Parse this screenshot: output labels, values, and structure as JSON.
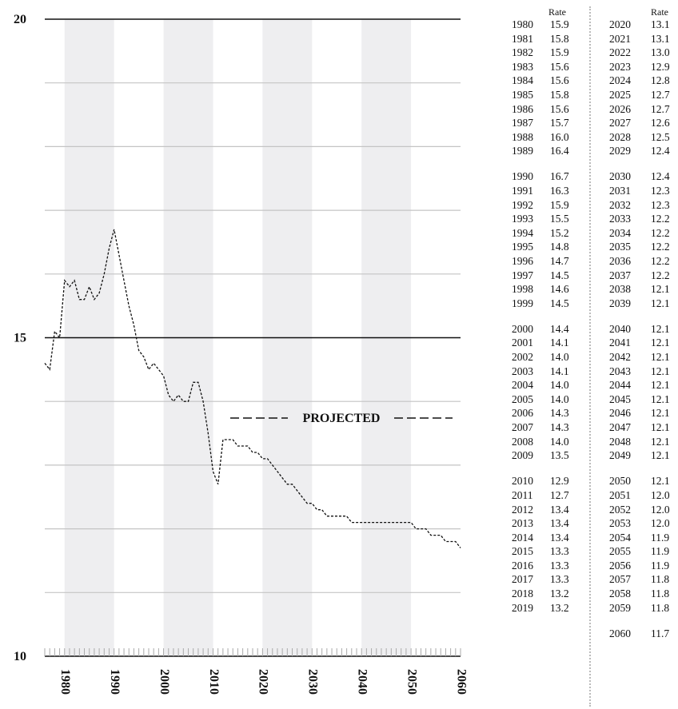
{
  "chart_data": {
    "type": "line",
    "ylim": [
      10,
      20
    ],
    "xlim": [
      1976,
      2060
    ],
    "y_major_ticks": [
      10,
      15,
      20
    ],
    "x_ticks": [
      1980,
      1990,
      2000,
      2010,
      2020,
      2030,
      2040,
      2050,
      2060
    ],
    "x_tick_labels": [
      "1980",
      "1990",
      "2000",
      "2010",
      "2020",
      "2030",
      "2040",
      "2050",
      "2060"
    ],
    "y_tick_labels": [
      "10",
      "15",
      "20"
    ],
    "annotation": "PROJECTED",
    "grid": true,
    "line_style": "dashed",
    "series": [
      {
        "x": [
          1976,
          1977,
          1978,
          1979,
          1980,
          1981,
          1982,
          1983,
          1984,
          1985,
          1986,
          1987,
          1988,
          1989,
          1990,
          1991,
          1992,
          1993,
          1994,
          1995,
          1996,
          1997,
          1998,
          1999,
          2000,
          2001,
          2002,
          2003,
          2004,
          2005,
          2006,
          2007,
          2008,
          2009,
          2010,
          2011,
          2012,
          2013,
          2014,
          2015,
          2016,
          2017,
          2018,
          2019,
          2020,
          2021,
          2022,
          2023,
          2024,
          2025,
          2026,
          2027,
          2028,
          2029,
          2030,
          2031,
          2032,
          2033,
          2034,
          2035,
          2036,
          2037,
          2038,
          2039,
          2040,
          2041,
          2042,
          2043,
          2044,
          2045,
          2046,
          2047,
          2048,
          2049,
          2050,
          2051,
          2052,
          2053,
          2054,
          2055,
          2056,
          2057,
          2058,
          2059,
          2060
        ],
        "values": [
          14.6,
          14.5,
          15.1,
          15.0,
          15.9,
          15.8,
          15.9,
          15.6,
          15.6,
          15.8,
          15.6,
          15.7,
          16.0,
          16.4,
          16.7,
          16.3,
          15.9,
          15.5,
          15.2,
          14.8,
          14.7,
          14.5,
          14.6,
          14.5,
          14.4,
          14.1,
          14.0,
          14.1,
          14.0,
          14.0,
          14.3,
          14.3,
          14.0,
          13.5,
          12.9,
          12.7,
          13.4,
          13.4,
          13.4,
          13.3,
          13.3,
          13.3,
          13.2,
          13.2,
          13.1,
          13.1,
          13.0,
          12.9,
          12.8,
          12.7,
          12.7,
          12.6,
          12.5,
          12.4,
          12.4,
          12.3,
          12.3,
          12.2,
          12.2,
          12.2,
          12.2,
          12.2,
          12.1,
          12.1,
          12.1,
          12.1,
          12.1,
          12.1,
          12.1,
          12.1,
          12.1,
          12.1,
          12.1,
          12.1,
          12.1,
          12.0,
          12.0,
          12.0,
          11.9,
          11.9,
          11.9,
          11.8,
          11.8,
          11.8,
          11.7
        ]
      }
    ]
  },
  "table": {
    "rate_header": "Rate",
    "left_groups": [
      [
        [
          "1980",
          "15.9"
        ],
        [
          "1981",
          "15.8"
        ],
        [
          "1982",
          "15.9"
        ],
        [
          "1983",
          "15.6"
        ],
        [
          "1984",
          "15.6"
        ],
        [
          "1985",
          "15.8"
        ],
        [
          "1986",
          "15.6"
        ],
        [
          "1987",
          "15.7"
        ],
        [
          "1988",
          "16.0"
        ],
        [
          "1989",
          "16.4"
        ]
      ],
      [
        [
          "1990",
          "16.7"
        ],
        [
          "1991",
          "16.3"
        ],
        [
          "1992",
          "15.9"
        ],
        [
          "1993",
          "15.5"
        ],
        [
          "1994",
          "15.2"
        ],
        [
          "1995",
          "14.8"
        ],
        [
          "1996",
          "14.7"
        ],
        [
          "1997",
          "14.5"
        ],
        [
          "1998",
          "14.6"
        ],
        [
          "1999",
          "14.5"
        ]
      ],
      [
        [
          "2000",
          "14.4"
        ],
        [
          "2001",
          "14.1"
        ],
        [
          "2002",
          "14.0"
        ],
        [
          "2003",
          "14.1"
        ],
        [
          "2004",
          "14.0"
        ],
        [
          "2005",
          "14.0"
        ],
        [
          "2006",
          "14.3"
        ],
        [
          "2007",
          "14.3"
        ],
        [
          "2008",
          "14.0"
        ],
        [
          "2009",
          "13.5"
        ]
      ],
      [
        [
          "2010",
          "12.9"
        ],
        [
          "2011",
          "12.7"
        ],
        [
          "2012",
          "13.4"
        ],
        [
          "2013",
          "13.4"
        ],
        [
          "2014",
          "13.4"
        ],
        [
          "2015",
          "13.3"
        ],
        [
          "2016",
          "13.3"
        ],
        [
          "2017",
          "13.3"
        ],
        [
          "2018",
          "13.2"
        ],
        [
          "2019",
          "13.2"
        ]
      ]
    ],
    "right_groups": [
      [
        [
          "2020",
          "13.1"
        ],
        [
          "2021",
          "13.1"
        ],
        [
          "2022",
          "13.0"
        ],
        [
          "2023",
          "12.9"
        ],
        [
          "2024",
          "12.8"
        ],
        [
          "2025",
          "12.7"
        ],
        [
          "2026",
          "12.7"
        ],
        [
          "2027",
          "12.6"
        ],
        [
          "2028",
          "12.5"
        ],
        [
          "2029",
          "12.4"
        ]
      ],
      [
        [
          "2030",
          "12.4"
        ],
        [
          "2031",
          "12.3"
        ],
        [
          "2032",
          "12.3"
        ],
        [
          "2033",
          "12.2"
        ],
        [
          "2034",
          "12.2"
        ],
        [
          "2035",
          "12.2"
        ],
        [
          "2036",
          "12.2"
        ],
        [
          "2037",
          "12.2"
        ],
        [
          "2038",
          "12.1"
        ],
        [
          "2039",
          "12.1"
        ]
      ],
      [
        [
          "2040",
          "12.1"
        ],
        [
          "2041",
          "12.1"
        ],
        [
          "2042",
          "12.1"
        ],
        [
          "2043",
          "12.1"
        ],
        [
          "2044",
          "12.1"
        ],
        [
          "2045",
          "12.1"
        ],
        [
          "2046",
          "12.1"
        ],
        [
          "2047",
          "12.1"
        ],
        [
          "2048",
          "12.1"
        ],
        [
          "2049",
          "12.1"
        ]
      ],
      [
        [
          "2050",
          "12.1"
        ],
        [
          "2051",
          "12.0"
        ],
        [
          "2052",
          "12.0"
        ],
        [
          "2053",
          "12.0"
        ],
        [
          "2054",
          "11.9"
        ],
        [
          "2055",
          "11.9"
        ],
        [
          "2056",
          "11.9"
        ],
        [
          "2057",
          "11.8"
        ],
        [
          "2058",
          "11.8"
        ],
        [
          "2059",
          "11.8"
        ]
      ],
      [
        [
          "2060",
          "11.7"
        ]
      ]
    ]
  },
  "colors": {
    "band": "#eeeef0",
    "gridline": "#c4c4c4",
    "major_line": "#111111",
    "series_line": "#111111"
  }
}
